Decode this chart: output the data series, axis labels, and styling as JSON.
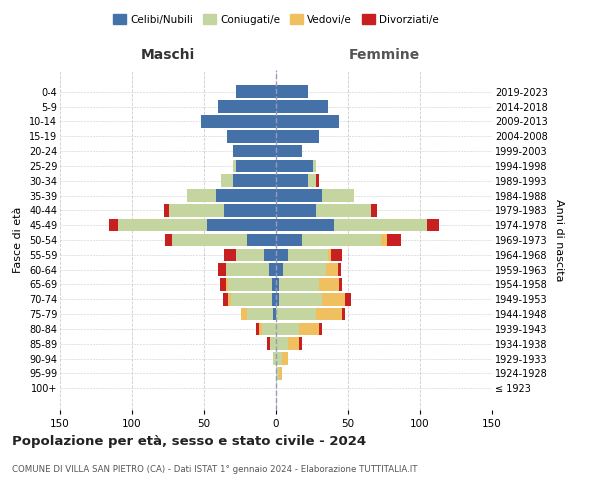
{
  "age_groups": [
    "100+",
    "95-99",
    "90-94",
    "85-89",
    "80-84",
    "75-79",
    "70-74",
    "65-69",
    "60-64",
    "55-59",
    "50-54",
    "45-49",
    "40-44",
    "35-39",
    "30-34",
    "25-29",
    "20-24",
    "15-19",
    "10-14",
    "5-9",
    "0-4"
  ],
  "birth_years": [
    "≤ 1923",
    "1924-1928",
    "1929-1933",
    "1934-1938",
    "1939-1943",
    "1944-1948",
    "1949-1953",
    "1954-1958",
    "1959-1963",
    "1964-1968",
    "1969-1973",
    "1974-1978",
    "1979-1983",
    "1984-1988",
    "1989-1993",
    "1994-1998",
    "1999-2003",
    "2004-2008",
    "2009-2013",
    "2014-2018",
    "2019-2023"
  ],
  "males": {
    "celibi": [
      0,
      0,
      0,
      0,
      0,
      2,
      3,
      3,
      5,
      8,
      20,
      48,
      36,
      42,
      30,
      28,
      30,
      34,
      52,
      40,
      28
    ],
    "coniugati": [
      0,
      0,
      2,
      4,
      10,
      18,
      28,
      30,
      30,
      20,
      52,
      62,
      38,
      20,
      8,
      2,
      0,
      0,
      0,
      0,
      0
    ],
    "vedovi": [
      0,
      0,
      0,
      0,
      2,
      4,
      2,
      2,
      0,
      0,
      0,
      0,
      0,
      0,
      0,
      0,
      0,
      0,
      0,
      0,
      0
    ],
    "divorziati": [
      0,
      0,
      0,
      2,
      2,
      0,
      4,
      4,
      5,
      8,
      5,
      6,
      4,
      0,
      0,
      0,
      0,
      0,
      0,
      0,
      0
    ]
  },
  "females": {
    "nubili": [
      0,
      0,
      0,
      0,
      0,
      0,
      2,
      2,
      5,
      8,
      18,
      40,
      28,
      32,
      22,
      26,
      18,
      30,
      44,
      36,
      22
    ],
    "coniugate": [
      0,
      2,
      4,
      8,
      16,
      28,
      30,
      28,
      30,
      28,
      55,
      65,
      38,
      22,
      6,
      2,
      0,
      0,
      0,
      0,
      0
    ],
    "vedove": [
      0,
      2,
      4,
      8,
      14,
      18,
      16,
      14,
      8,
      2,
      4,
      0,
      0,
      0,
      0,
      0,
      0,
      0,
      0,
      0,
      0
    ],
    "divorziate": [
      0,
      0,
      0,
      2,
      2,
      2,
      4,
      2,
      2,
      8,
      10,
      8,
      4,
      0,
      2,
      0,
      0,
      0,
      0,
      0,
      0
    ]
  },
  "colors": {
    "celibi": "#4472a8",
    "coniugati": "#c5d5a0",
    "vedovi": "#f0c060",
    "divorziati": "#c82020"
  },
  "title": "Popolazione per età, sesso e stato civile - 2024",
  "subtitle": "COMUNE DI VILLA SAN PIETRO (CA) - Dati ISTAT 1° gennaio 2024 - Elaborazione TUTTITALIA.IT",
  "xlabel_left": "Maschi",
  "xlabel_right": "Femmine",
  "ylabel_left": "Fasce di età",
  "ylabel_right": "Anni di nascita",
  "xlim": 150,
  "bg_color": "#ffffff",
  "grid_color": "#cccccc"
}
